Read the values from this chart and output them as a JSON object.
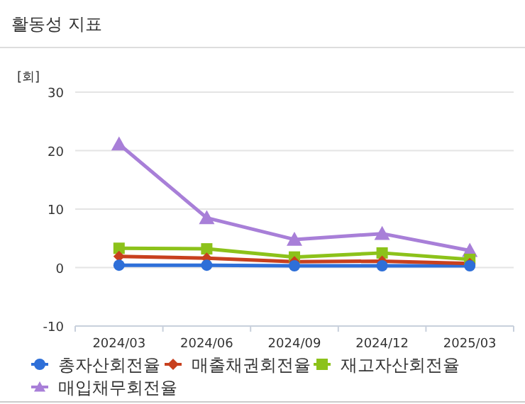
{
  "chart_data": {
    "type": "line",
    "title": "활동성 지표",
    "ylabel": "[회]",
    "categories": [
      "2024/03",
      "2024/06",
      "2024/09",
      "2024/12",
      "2025/03"
    ],
    "series": [
      {
        "name": "총자산회전율",
        "color": "#2e6fd8",
        "marker": "circle",
        "values": [
          0.4,
          0.4,
          0.3,
          0.3,
          0.3
        ]
      },
      {
        "name": "매출채권회전율",
        "color": "#c8401e",
        "marker": "diamond",
        "values": [
          1.9,
          1.6,
          1.0,
          1.1,
          0.7
        ]
      },
      {
        "name": "재고자산회전율",
        "color": "#8cc21a",
        "marker": "square",
        "values": [
          3.3,
          3.2,
          1.8,
          2.5,
          1.4
        ]
      },
      {
        "name": "매입채무회전율",
        "color": "#a87fd8",
        "marker": "triangle",
        "values": [
          21.1,
          8.5,
          4.8,
          5.8,
          2.9
        ]
      }
    ],
    "ylim": [
      -10,
      30
    ],
    "yticks": [
      -10,
      0,
      10,
      20,
      30
    ],
    "grid": "y",
    "legend": "bottom"
  }
}
